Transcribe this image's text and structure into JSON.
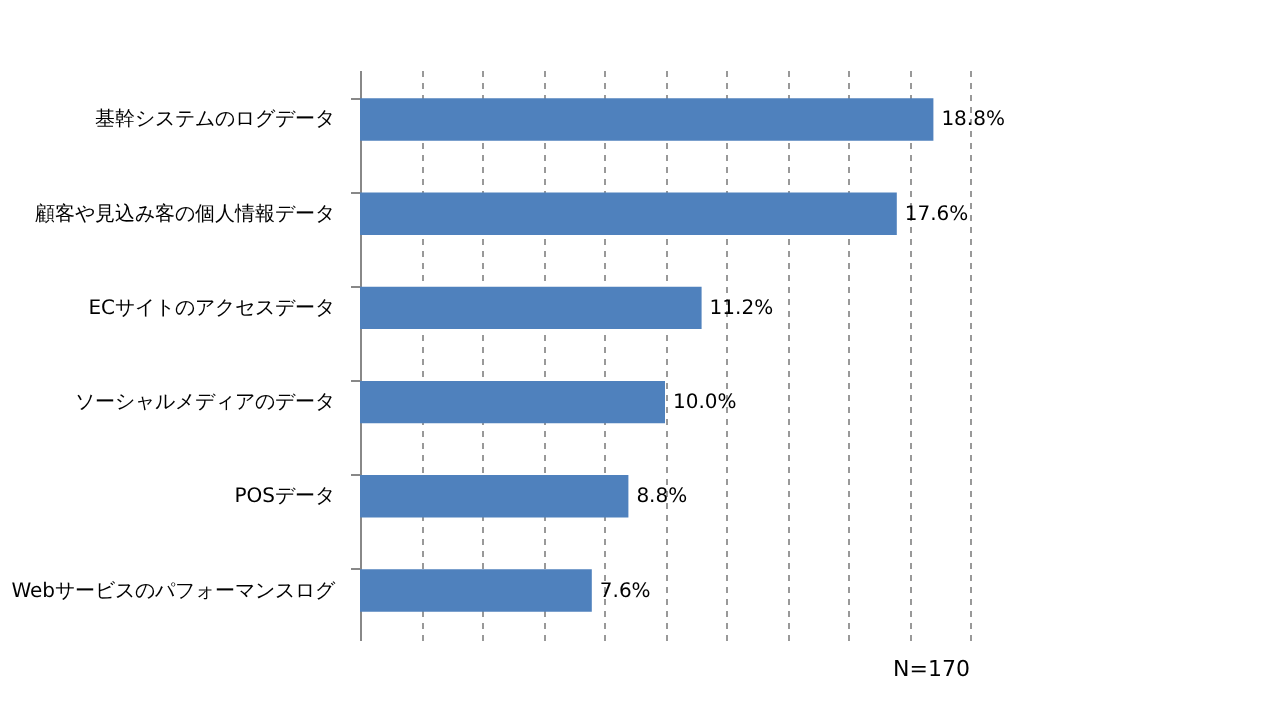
{
  "chart_data": {
    "type": "bar",
    "orientation": "horizontal",
    "categories": [
      "基幹システムのログデータ",
      "顧客や見込み客の個人情報データ",
      "ECサイトのアクセスデータ",
      "ソーシャルメディアのデータ",
      "POSデータ",
      "Webサービスのパフォーマンスログ"
    ],
    "values": [
      18.8,
      17.6,
      11.2,
      10.0,
      8.8,
      7.6
    ],
    "value_labels": [
      "18.8%",
      "17.6%",
      "11.2%",
      "10.0%",
      "8.8%",
      "7.6%"
    ],
    "color": "#4f81bd",
    "xlim": [
      0,
      20
    ],
    "xticks": [
      {
        "value": 0,
        "label": null
      },
      {
        "value": 2,
        "label": null
      },
      {
        "value": 4,
        "label": null
      },
      {
        "value": 6,
        "label": null
      },
      {
        "value": 8,
        "label": null
      },
      {
        "value": 10,
        "label": null
      },
      {
        "value": 12,
        "label": null
      },
      {
        "value": 14,
        "label": null
      },
      {
        "value": 16,
        "label": null
      },
      {
        "value": 18,
        "label": null
      },
      {
        "value": 20,
        "label": null
      }
    ],
    "grid": "x",
    "tick_labels": "y",
    "annotations": [
      "N=170"
    ]
  }
}
